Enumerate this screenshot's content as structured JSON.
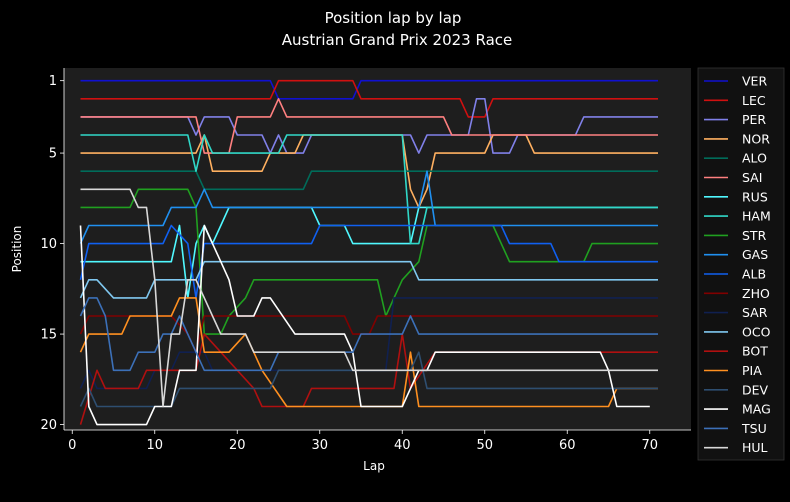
{
  "chart_data": {
    "type": "line",
    "title": "Position lap by lap",
    "subtitle": "Austrian Grand Prix 2023 Race",
    "xlabel": "Lap",
    "ylabel": "Position",
    "xlim": [
      -1,
      75
    ],
    "ylim": [
      20.3,
      0.3
    ],
    "xticks": [
      0,
      10,
      20,
      30,
      40,
      50,
      60,
      70
    ],
    "yticks": [
      1,
      5,
      10,
      15,
      20
    ],
    "grid": false,
    "legend_position": "right",
    "plot_background": "#1e1e1e",
    "page_background": "#000000",
    "series": [
      {
        "name": "VER",
        "color": "#1010d0",
        "points": [
          [
            1,
            1
          ],
          [
            24,
            1
          ],
          [
            25,
            2
          ],
          [
            34,
            2
          ],
          [
            35,
            1
          ],
          [
            71,
            1
          ]
        ]
      },
      {
        "name": "LEC",
        "color": "#d01010",
        "points": [
          [
            1,
            2
          ],
          [
            24,
            2
          ],
          [
            25,
            1
          ],
          [
            34,
            1
          ],
          [
            35,
            2
          ],
          [
            47,
            2
          ],
          [
            48,
            3
          ],
          [
            50,
            3
          ],
          [
            51,
            2
          ],
          [
            71,
            2
          ]
        ]
      },
      {
        "name": "PER",
        "color": "#8080e8",
        "points": [
          [
            1,
            3
          ],
          [
            14,
            3
          ],
          [
            15,
            4
          ],
          [
            16,
            3
          ],
          [
            19,
            3
          ],
          [
            20,
            4
          ],
          [
            23,
            4
          ],
          [
            24,
            5
          ],
          [
            25,
            4
          ],
          [
            26,
            5
          ],
          [
            28,
            5
          ],
          [
            29,
            4
          ],
          [
            41,
            4
          ],
          [
            42,
            5
          ],
          [
            43,
            4
          ],
          [
            48,
            4
          ],
          [
            49,
            2
          ],
          [
            50,
            2
          ],
          [
            51,
            5
          ],
          [
            53,
            5
          ],
          [
            54,
            4
          ],
          [
            61,
            4
          ],
          [
            62,
            3
          ],
          [
            71,
            3
          ]
        ]
      },
      {
        "name": "NOR",
        "color": "#ffb060",
        "points": [
          [
            1,
            5
          ],
          [
            15,
            5
          ],
          [
            16,
            4
          ],
          [
            17,
            6
          ],
          [
            23,
            6
          ],
          [
            24,
            5
          ],
          [
            27,
            5
          ],
          [
            28,
            4
          ],
          [
            40,
            4
          ],
          [
            41,
            7
          ],
          [
            42,
            8
          ],
          [
            43,
            7
          ],
          [
            44,
            5
          ],
          [
            50,
            5
          ],
          [
            51,
            4
          ],
          [
            55,
            4
          ],
          [
            56,
            5
          ],
          [
            71,
            5
          ]
        ]
      },
      {
        "name": "ALO",
        "color": "#006c5a",
        "points": [
          [
            1,
            6
          ],
          [
            15,
            6
          ],
          [
            16,
            7
          ],
          [
            28,
            7
          ],
          [
            29,
            6
          ],
          [
            71,
            6
          ]
        ]
      },
      {
        "name": "SAI",
        "color": "#ff8080",
        "points": [
          [
            1,
            3
          ],
          [
            15,
            3
          ],
          [
            16,
            5
          ],
          [
            19,
            5
          ],
          [
            20,
            3
          ],
          [
            24,
            3
          ],
          [
            25,
            2
          ],
          [
            26,
            3
          ],
          [
            45,
            3
          ],
          [
            46,
            4
          ],
          [
            61,
            4
          ],
          [
            62,
            4
          ],
          [
            71,
            4
          ]
        ]
      },
      {
        "name": "RUS",
        "color": "#50f8ff",
        "points": [
          [
            1,
            11
          ],
          [
            12,
            11
          ],
          [
            13,
            9
          ],
          [
            14,
            13
          ],
          [
            15,
            10
          ],
          [
            16,
            9
          ],
          [
            17,
            10
          ],
          [
            18,
            9
          ],
          [
            19,
            8
          ],
          [
            29,
            8
          ],
          [
            30,
            9
          ],
          [
            33,
            9
          ],
          [
            34,
            10
          ],
          [
            41,
            10
          ],
          [
            42,
            8
          ],
          [
            71,
            8
          ]
        ]
      },
      {
        "name": "HAM",
        "color": "#30d8c8",
        "points": [
          [
            1,
            4
          ],
          [
            14,
            4
          ],
          [
            15,
            6
          ],
          [
            16,
            4
          ],
          [
            17,
            5
          ],
          [
            25,
            5
          ],
          [
            26,
            4
          ],
          [
            40,
            4
          ],
          [
            41,
            10
          ],
          [
            42,
            10
          ],
          [
            43,
            8
          ],
          [
            71,
            8
          ]
        ]
      },
      {
        "name": "STR",
        "color": "#20a020",
        "points": [
          [
            1,
            8
          ],
          [
            7,
            8
          ],
          [
            8,
            7
          ],
          [
            14,
            7
          ],
          [
            15,
            8
          ],
          [
            16,
            15
          ],
          [
            18,
            15
          ],
          [
            19,
            14
          ],
          [
            21,
            13
          ],
          [
            22,
            12
          ],
          [
            37,
            12
          ],
          [
            38,
            14
          ],
          [
            39,
            13
          ],
          [
            40,
            12
          ],
          [
            42,
            11
          ],
          [
            43,
            9
          ],
          [
            51,
            9
          ],
          [
            53,
            11
          ],
          [
            62,
            11
          ],
          [
            63,
            10
          ],
          [
            71,
            10
          ]
        ]
      },
      {
        "name": "GAS",
        "color": "#2090f0",
        "points": [
          [
            1,
            10
          ],
          [
            2,
            9
          ],
          [
            3,
            9
          ],
          [
            11,
            9
          ],
          [
            12,
            8
          ],
          [
            15,
            8
          ],
          [
            16,
            7
          ],
          [
            17,
            8
          ],
          [
            42,
            8
          ],
          [
            43,
            6
          ],
          [
            44,
            9
          ],
          [
            71,
            9
          ]
        ]
      },
      {
        "name": "ALB",
        "color": "#1060f0",
        "points": [
          [
            1,
            12
          ],
          [
            2,
            10
          ],
          [
            3,
            10
          ],
          [
            11,
            10
          ],
          [
            12,
            9
          ],
          [
            14,
            10
          ],
          [
            15,
            13
          ],
          [
            16,
            10
          ],
          [
            29,
            10
          ],
          [
            30,
            9
          ],
          [
            52,
            9
          ],
          [
            53,
            10
          ],
          [
            58,
            10
          ],
          [
            59,
            11
          ],
          [
            71,
            11
          ]
        ]
      },
      {
        "name": "ZHO",
        "color": "#800000",
        "points": [
          [
            1,
            15
          ],
          [
            2,
            14
          ],
          [
            3,
            14
          ],
          [
            12,
            14
          ],
          [
            14,
            15
          ],
          [
            15,
            16
          ],
          [
            16,
            14
          ],
          [
            33,
            14
          ],
          [
            34,
            15
          ],
          [
            36,
            15
          ],
          [
            37,
            14
          ],
          [
            71,
            14
          ]
        ]
      },
      {
        "name": "SAR",
        "color": "#102050",
        "points": [
          [
            1,
            18
          ],
          [
            2,
            17
          ],
          [
            3,
            18
          ],
          [
            9,
            18
          ],
          [
            10,
            17
          ],
          [
            12,
            17
          ],
          [
            13,
            16
          ],
          [
            16,
            16
          ],
          [
            17,
            17
          ],
          [
            38,
            17
          ],
          [
            39,
            13
          ],
          [
            71,
            13
          ]
        ]
      },
      {
        "name": "OCO",
        "color": "#80c8f0",
        "points": [
          [
            1,
            13
          ],
          [
            2,
            12
          ],
          [
            3,
            12
          ],
          [
            5,
            13
          ],
          [
            9,
            13
          ],
          [
            10,
            12
          ],
          [
            15,
            12
          ],
          [
            16,
            11
          ],
          [
            41,
            11
          ],
          [
            42,
            12
          ],
          [
            71,
            12
          ]
        ]
      },
      {
        "name": "BOT",
        "color": "#b01010",
        "points": [
          [
            1,
            20
          ],
          [
            3,
            17
          ],
          [
            4,
            18
          ],
          [
            8,
            18
          ],
          [
            9,
            17
          ],
          [
            15,
            17
          ],
          [
            16,
            15
          ],
          [
            18,
            16
          ],
          [
            22,
            18
          ],
          [
            23,
            19
          ],
          [
            28,
            19
          ],
          [
            29,
            18
          ],
          [
            39,
            18
          ],
          [
            40,
            15
          ],
          [
            41,
            18
          ],
          [
            44,
            16
          ],
          [
            71,
            16
          ]
        ]
      },
      {
        "name": "PIA",
        "color": "#ff9020",
        "points": [
          [
            1,
            16
          ],
          [
            2,
            15
          ],
          [
            6,
            15
          ],
          [
            7,
            14
          ],
          [
            12,
            14
          ],
          [
            13,
            13
          ],
          [
            15,
            13
          ],
          [
            16,
            16
          ],
          [
            19,
            16
          ],
          [
            21,
            15
          ],
          [
            23,
            17
          ],
          [
            26,
            19
          ],
          [
            40,
            19
          ],
          [
            41,
            16
          ],
          [
            42,
            19
          ],
          [
            65,
            19
          ],
          [
            66,
            18
          ],
          [
            71,
            18
          ]
        ]
      },
      {
        "name": "DEV",
        "color": "#2e4e70",
        "points": [
          [
            1,
            19
          ],
          [
            2,
            18
          ],
          [
            3,
            19
          ],
          [
            12,
            19
          ],
          [
            13,
            18
          ],
          [
            24,
            18
          ],
          [
            25,
            17
          ],
          [
            41,
            17
          ],
          [
            42,
            16
          ],
          [
            43,
            18
          ],
          [
            71,
            18
          ]
        ]
      },
      {
        "name": "MAG",
        "color": "#ffffff",
        "points": [
          [
            1,
            9
          ],
          [
            2,
            19
          ],
          [
            3,
            20
          ],
          [
            9,
            20
          ],
          [
            10,
            19
          ],
          [
            12,
            19
          ],
          [
            13,
            17
          ],
          [
            15,
            17
          ],
          [
            16,
            9
          ],
          [
            17,
            10
          ],
          [
            18,
            11
          ],
          [
            19,
            12
          ],
          [
            20,
            14
          ],
          [
            22,
            14
          ],
          [
            23,
            13
          ],
          [
            24,
            13
          ],
          [
            27,
            15
          ],
          [
            33,
            15
          ],
          [
            34,
            16
          ],
          [
            35,
            19
          ],
          [
            40,
            19
          ],
          [
            41,
            18
          ],
          [
            42,
            17
          ],
          [
            43,
            17
          ],
          [
            44,
            16
          ],
          [
            64,
            16
          ],
          [
            65,
            17
          ],
          [
            66,
            19
          ],
          [
            70,
            19
          ]
        ]
      },
      {
        "name": "TSU",
        "color": "#3c70b8",
        "points": [
          [
            1,
            14
          ],
          [
            2,
            13
          ],
          [
            3,
            13
          ],
          [
            4,
            14
          ],
          [
            5,
            17
          ],
          [
            7,
            17
          ],
          [
            8,
            16
          ],
          [
            10,
            16
          ],
          [
            11,
            15
          ],
          [
            12,
            15
          ],
          [
            13,
            14
          ],
          [
            16,
            17
          ],
          [
            17,
            17
          ],
          [
            24,
            17
          ],
          [
            25,
            16
          ],
          [
            34,
            16
          ],
          [
            35,
            15
          ],
          [
            40,
            15
          ],
          [
            41,
            14
          ],
          [
            42,
            15
          ],
          [
            71,
            15
          ]
        ]
      },
      {
        "name": "HUL",
        "color": "#d8d8d8",
        "points": [
          [
            1,
            7
          ],
          [
            6,
            7
          ],
          [
            7,
            7
          ],
          [
            8,
            8
          ],
          [
            9,
            8
          ],
          [
            10,
            12
          ],
          [
            11,
            19
          ],
          [
            12,
            15
          ],
          [
            13,
            15
          ],
          [
            14,
            12
          ],
          [
            15,
            12
          ],
          [
            16,
            13
          ],
          [
            17,
            14
          ],
          [
            18,
            15
          ],
          [
            21,
            15
          ],
          [
            22,
            16
          ],
          [
            33,
            16
          ],
          [
            34,
            17
          ],
          [
            71,
            17
          ]
        ]
      }
    ]
  }
}
